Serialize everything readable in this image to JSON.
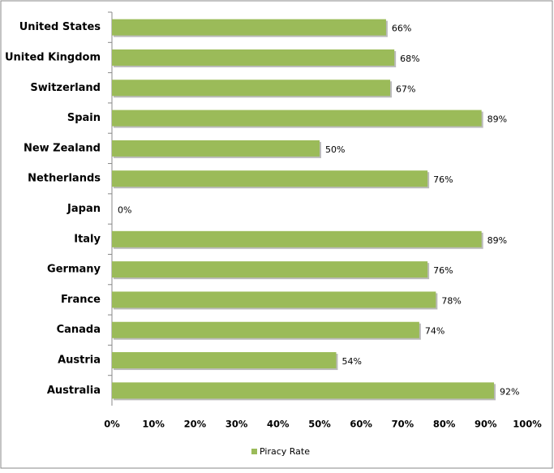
{
  "chart_data": {
    "type": "hbar",
    "categories": [
      "United States",
      "United Kingdom",
      "Switzerland",
      "Spain",
      "New Zealand",
      "Netherlands",
      "Japan",
      "Italy",
      "Germany",
      "France",
      "Canada",
      "Austria",
      "Australia"
    ],
    "series": [
      {
        "name": "Piracy Rate",
        "color": "#9bbb59",
        "values": [
          66,
          68,
          67,
          89,
          50,
          76,
          0,
          89,
          76,
          78,
          74,
          54,
          92
        ],
        "value_labels": [
          "66%",
          "68%",
          "67%",
          "89%",
          "50%",
          "76%",
          "0%",
          "89%",
          "76%",
          "78%",
          "74%",
          "54%",
          "92%"
        ]
      }
    ],
    "xlim": [
      0,
      100
    ],
    "xticks": [
      {
        "value": 0,
        "label": "0%"
      },
      {
        "value": 10,
        "label": "10%"
      },
      {
        "value": 20,
        "label": "20%"
      },
      {
        "value": 30,
        "label": "30%"
      },
      {
        "value": 40,
        "label": "40%"
      },
      {
        "value": 50,
        "label": "50%"
      },
      {
        "value": 60,
        "label": "60%"
      },
      {
        "value": 70,
        "label": "70%"
      },
      {
        "value": 80,
        "label": "80%"
      },
      {
        "value": 90,
        "label": "90%"
      },
      {
        "value": 100,
        "label": "100%"
      }
    ],
    "grid": false,
    "legend": "bottom"
  }
}
